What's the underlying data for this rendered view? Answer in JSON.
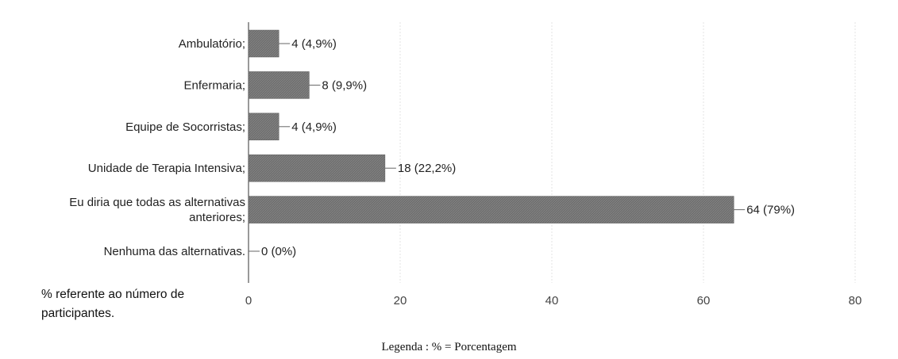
{
  "chart_data": {
    "type": "bar",
    "orientation": "horizontal",
    "categories": [
      [
        "Ambulatório;"
      ],
      [
        "Enfermaria;"
      ],
      [
        "Equipe de Socorristas;"
      ],
      [
        "Unidade de Terapia Intensiva;"
      ],
      [
        "Eu diria que todas as alternativas",
        "anteriores;"
      ],
      [
        "Nenhuma das alternativas."
      ]
    ],
    "values": [
      4,
      8,
      4,
      18,
      64,
      0
    ],
    "value_labels": [
      "4 (4,9%)",
      "8 (9,9%)",
      "4 (4,9%)",
      "18 (22,2%)",
      "64 (79%)",
      "0 (0%)"
    ],
    "x_ticks": [
      "0",
      "20",
      "40",
      "60",
      "80"
    ],
    "xlim": [
      0,
      80
    ],
    "grid": true,
    "legend": "none",
    "bar_color": "#6e6e6e"
  },
  "footnote": "% referente ao número de participantes.",
  "caption": "Legenda : % = Porcentagem"
}
